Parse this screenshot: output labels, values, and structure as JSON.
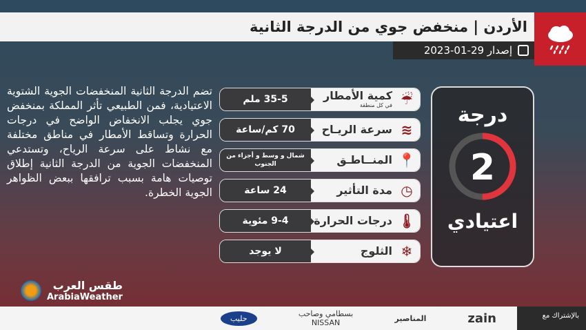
{
  "header": {
    "title": "الأردن | منخفض جوي من الدرجة الثانية",
    "date_label": "إصدار 29-01-2023",
    "icon": "rain-cloud-icon"
  },
  "description": "تضم الدرجة الثانية المنخفضات الجوية الشتوية الاعتيادية، فمن الطبيعي تأثر المملكة بمنخفض جوي يجلب الانخفاض الواضح في درجات الحرارة وتساقط الأمطار في مناطق مختلفة مع نشاط على سرعة الرياح، وتستدعي المنخفضات الجوية من الدرجة الثانية إطلاق توصيات هامة بسبب ترافقها ببعض الظواهر الجوية الخطرة.",
  "rows": [
    {
      "label": "كمية الأمطار",
      "sub": "في كل منطقة",
      "value": "35-5 ملم",
      "icon": "rain-icon"
    },
    {
      "label": "سرعة الريـاح",
      "value": "70 كم/ساعة",
      "icon": "wind-icon"
    },
    {
      "label": "المنــاطـق",
      "value": "شمال و وسط و أجزاء من الجنوب",
      "icon": "location-pin-icon"
    },
    {
      "label": "مدة التأثير",
      "value": "24 ساعة",
      "icon": "clock-icon"
    },
    {
      "label": "درجات الحرارة",
      "value": "9-4 مئوية",
      "icon": "thermometer-icon"
    },
    {
      "label": "الثلوج",
      "value": "لا يوجد",
      "icon": "snowflake-icon"
    }
  ],
  "card": {
    "top": "درجة",
    "number": "2",
    "bottom": "اعتيادي",
    "level_fraction": 0.5
  },
  "logo": {
    "ar": "طقس العرب",
    "en": "ArabiaWeather"
  },
  "footer": {
    "partner_label": "بالإشتراك مع",
    "sponsors": [
      "zain",
      "المناصير",
      "بسطامي وصاحب NISSAN",
      "حليب"
    ]
  },
  "colors": {
    "accent": "#c8202a"
  }
}
